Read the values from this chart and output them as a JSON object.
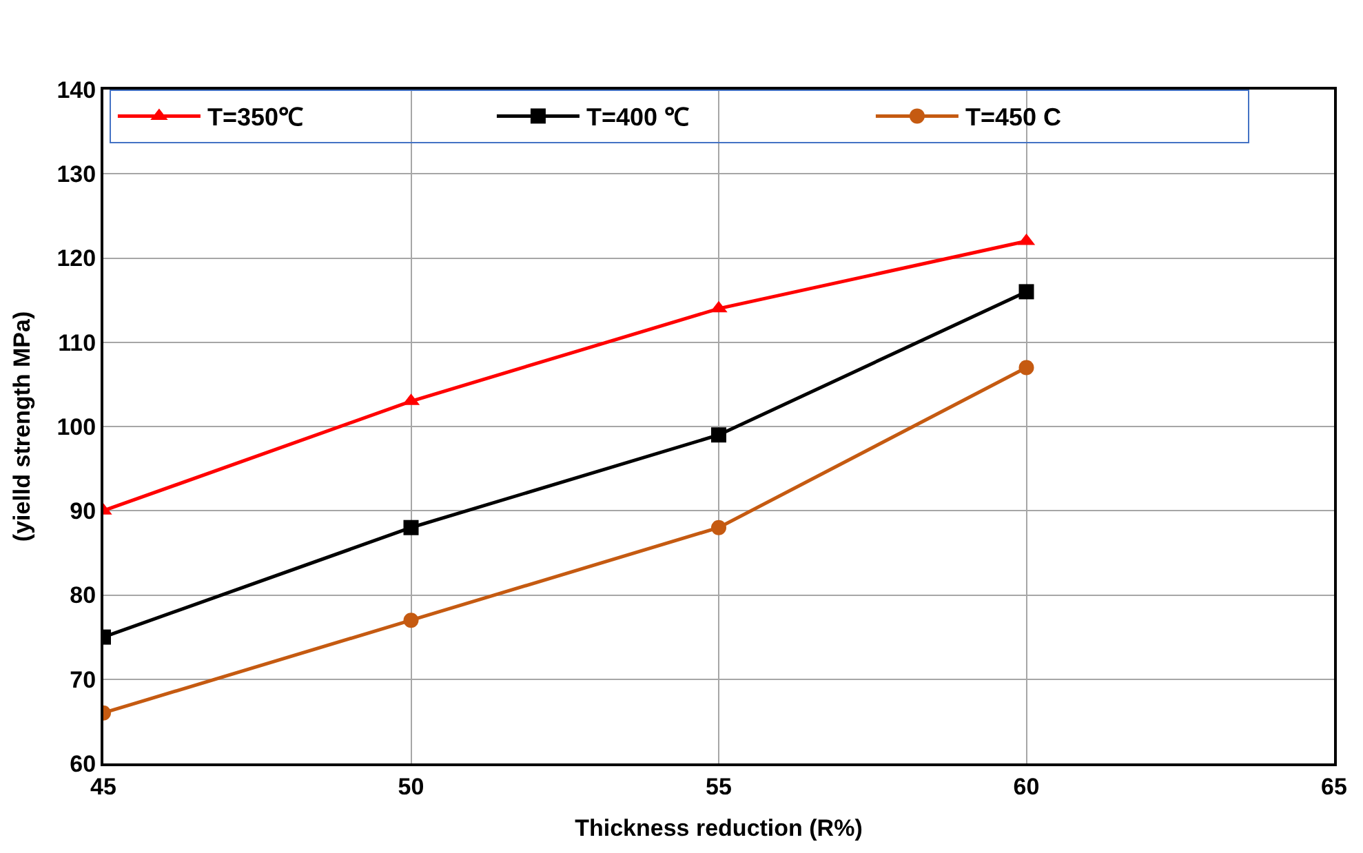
{
  "chart_data": {
    "type": "line",
    "xlabel": "Thickness reduction (R%)",
    "ylabel": "(yielld strength MPa)",
    "x": [
      45,
      50,
      55,
      60
    ],
    "series": [
      {
        "name": "T=350℃",
        "color": "#ff0000",
        "marker": "triangle",
        "values": [
          90,
          103,
          114,
          122
        ]
      },
      {
        "name": "T=400 ℃",
        "color": "#000000",
        "marker": "square",
        "values": [
          75,
          88,
          99,
          116
        ]
      },
      {
        "name": "T=450 C",
        "color": "#c55a11",
        "marker": "circle",
        "values": [
          66,
          77,
          88,
          107
        ]
      }
    ],
    "xlim": [
      45,
      65
    ],
    "xticks": [
      45,
      50,
      55,
      60,
      65
    ],
    "ylim": [
      60,
      140
    ],
    "yticks": [
      60,
      70,
      80,
      90,
      100,
      110,
      120,
      130,
      140
    ],
    "grid": true,
    "legend": "top",
    "line_style": "solid"
  }
}
